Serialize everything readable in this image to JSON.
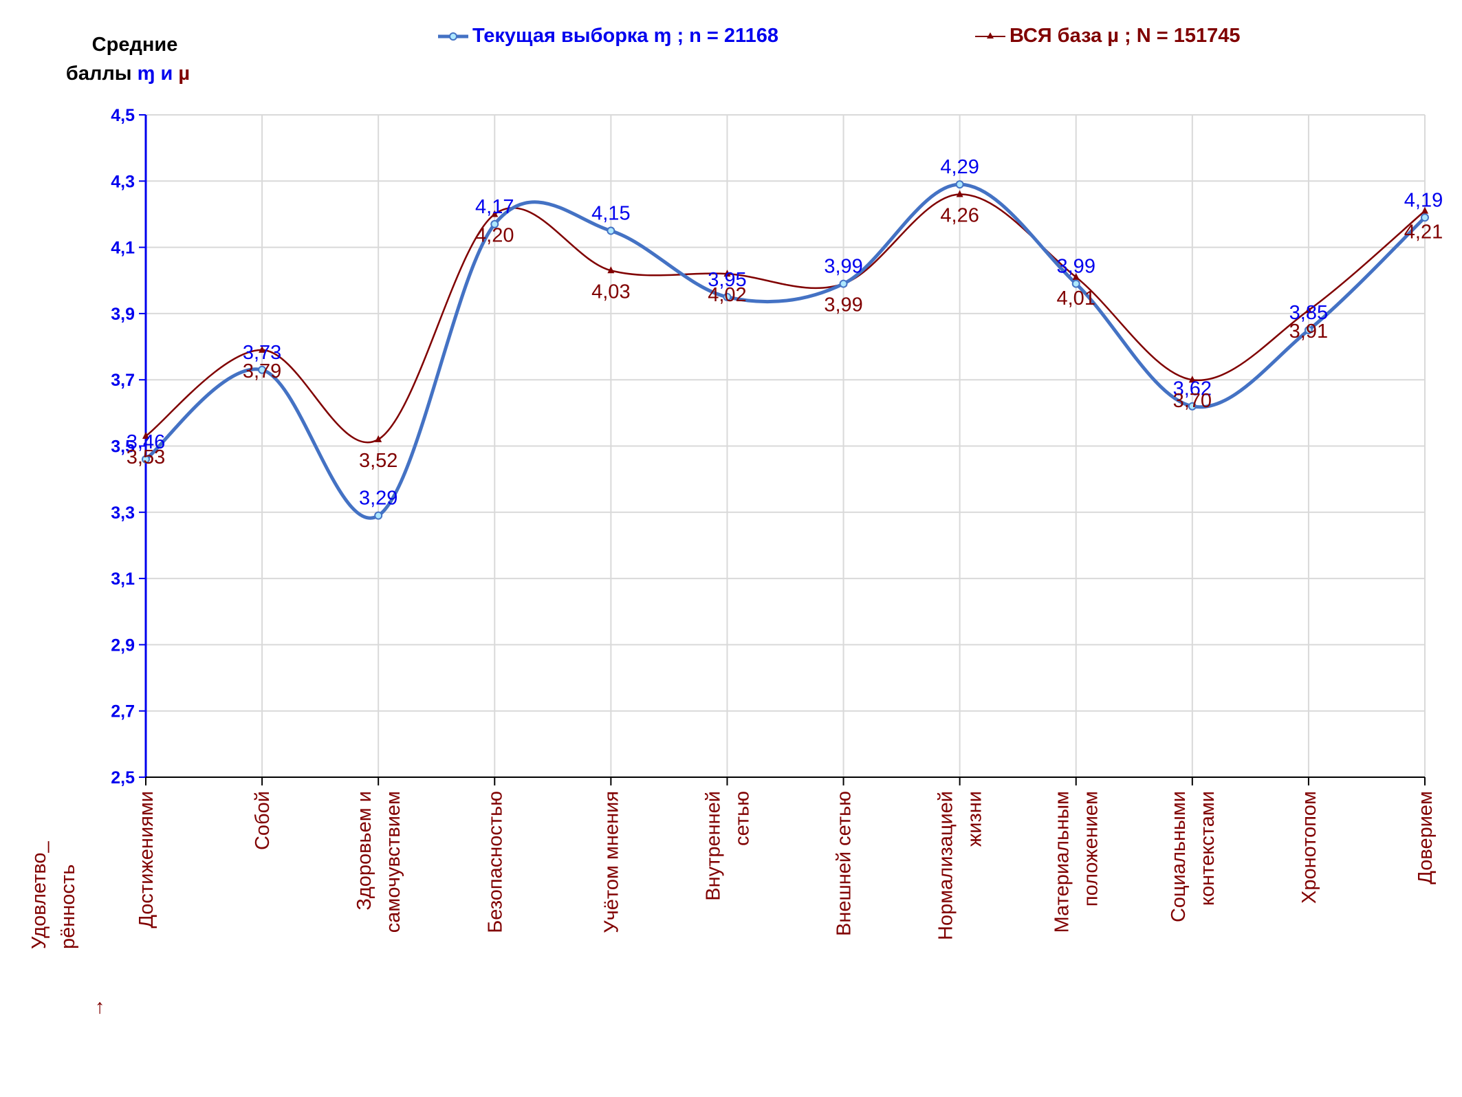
{
  "chart_data": {
    "type": "line",
    "categories": [
      "Достижениями",
      "Собой",
      "Здоровьем и самочувствием",
      "Безопасностью",
      "Учётом мнения",
      "Внутренней сетью",
      "Внешней сетью",
      "Нормализацией жизни",
      "Материальным положением",
      "Социальными контекстами",
      "Хронотопом",
      "Доверием"
    ],
    "series": [
      {
        "name": "Текущая выборка ɱ ; n = 21168",
        "values": [
          3.46,
          3.73,
          3.29,
          4.17,
          4.15,
          3.95,
          3.99,
          4.29,
          3.99,
          3.62,
          3.85,
          4.19
        ],
        "labels": [
          "3,46",
          "3,73",
          "3,29",
          "4,17",
          "4,15",
          "3,95",
          "3,99",
          "4,29",
          "3,99",
          "3,62",
          "3,85",
          "4,19"
        ],
        "color": "#4472c4",
        "label_color": "#0000ee",
        "marker": "circle"
      },
      {
        "name": "ВСЯ база µ ; N = 151745",
        "values": [
          3.53,
          3.79,
          3.52,
          4.2,
          4.03,
          4.02,
          3.99,
          4.26,
          4.01,
          3.7,
          3.91,
          4.21
        ],
        "labels": [
          "3,53",
          "3,79",
          "3,52",
          "4,20",
          "4,03",
          "4,02",
          "3,99",
          "4,26",
          "4,01",
          "3,70",
          "3,91",
          "4,21"
        ],
        "color": "#800000",
        "label_color": "#800000",
        "marker": "triangle"
      }
    ],
    "y_ticks": [
      "2,5",
      "2,7",
      "2,9",
      "3,1",
      "3,3",
      "3,5",
      "3,7",
      "3,9",
      "4,1",
      "4,3",
      "4,5"
    ],
    "ylim": [
      2.5,
      4.5
    ],
    "grid": true,
    "legend_position": "top"
  },
  "corner_label": {
    "line1": "Средние",
    "line2_prefix": "баллы",
    "line2_m": "ɱ",
    "line2_and": "и",
    "line2_mu": "µ"
  },
  "bottom_note": {
    "line1": "Удовлетво_",
    "line2": "рённость",
    "arrow": "→"
  },
  "colors": {
    "axis": "#0000ee",
    "tick_label": "#0000ee",
    "category_label": "#800000",
    "grid": "#d9d9d9"
  }
}
